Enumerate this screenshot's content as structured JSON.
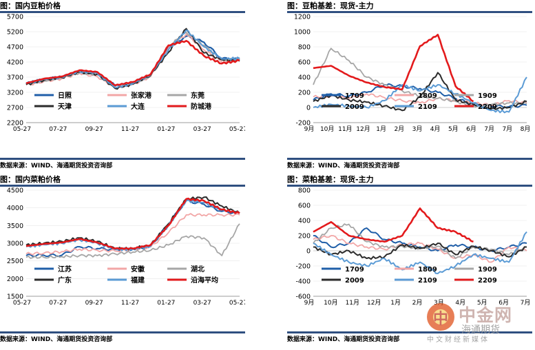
{
  "panels": [
    {
      "title": "图：国内豆粕价格",
      "source": "数据来源：WIND、海通期货投资咨询部",
      "chart_data": {
        "type": "line",
        "ylim": [
          2200,
          5700
        ],
        "yticks": [
          2200,
          2700,
          3200,
          3700,
          4200,
          4700,
          5200,
          5700
        ],
        "xticks": [
          "05-27",
          "07-27",
          "09-27",
          "11-27",
          "01-27",
          "03-27",
          "05-27"
        ],
        "x_count": 13,
        "series": [
          {
            "name": "日照",
            "color": "#1f5ea8",
            "width": 2.2,
            "values": [
              3480,
              3620,
              3700,
              3880,
              3820,
              3420,
              3510,
              3760,
              4700,
              5050,
              4850,
              4310,
              4280
            ]
          },
          {
            "name": "张家港",
            "color": "#f2a6a6",
            "width": 1.8,
            "values": [
              3440,
              3560,
              3650,
              3830,
              3720,
              3370,
              3460,
              3720,
              4650,
              5120,
              4600,
              4200,
              4260
            ]
          },
          {
            "name": "东莞",
            "color": "#a6a6a6",
            "width": 1.8,
            "values": [
              3460,
              3580,
              3680,
              3850,
              3780,
              3380,
              3480,
              3740,
              4720,
              5180,
              4750,
              4260,
              4300
            ]
          },
          {
            "name": "天津",
            "color": "#2b2b2b",
            "width": 2.0,
            "values": [
              3460,
              3600,
              3690,
              3870,
              3800,
              3330,
              3470,
              3770,
              4520,
              5300,
              4500,
              4280,
              4230
            ]
          },
          {
            "name": "大连",
            "color": "#5b9bd5",
            "width": 2.0,
            "values": [
              3500,
              3630,
              3710,
              3890,
              3830,
              3360,
              3490,
              3790,
              4600,
              5250,
              4700,
              4300,
              4320
            ]
          },
          {
            "name": "防城港",
            "color": "#e31a1c",
            "width": 2.6,
            "values": [
              3500,
              3650,
              3720,
              3930,
              3870,
              3430,
              3540,
              3800,
              4750,
              4900,
              4400,
              4150,
              4250
            ]
          }
        ]
      }
    },
    {
      "title": "图：豆粕基差：现货-主力",
      "source": "数据来源：WIND、海通期货投资咨询部",
      "chart_data": {
        "type": "line",
        "ylim": [
          -200,
          1200
        ],
        "yticks": [
          -200,
          0,
          200,
          400,
          600,
          800,
          1000,
          1200
        ],
        "xticks": [
          "9月",
          "10月",
          "11月",
          "12月",
          "1月",
          "2月",
          "3月",
          "4月",
          "5月",
          "6月",
          "7月",
          "7月",
          "8月"
        ],
        "x_count": 13,
        "series": [
          {
            "name": "1709",
            "color": "#1f5ea8",
            "width": 2.0,
            "values": [
              100,
              180,
              150,
              200,
              300,
              280,
              250,
              200,
              120,
              40,
              20,
              10,
              30
            ]
          },
          {
            "name": "1809",
            "color": "#f2a6a6",
            "width": 1.8,
            "values": [
              140,
              150,
              120,
              180,
              130,
              90,
              60,
              120,
              90,
              60,
              30,
              90,
              60
            ]
          },
          {
            "name": "1909",
            "color": "#a6a6a6",
            "width": 1.8,
            "values": [
              300,
              780,
              620,
              400,
              300,
              220,
              150,
              120,
              80,
              20,
              40,
              60,
              50
            ]
          },
          {
            "name": "2009",
            "color": "#2b2b2b",
            "width": 2.0,
            "values": [
              80,
              160,
              100,
              70,
              20,
              -40,
              140,
              460,
              100,
              40,
              -20,
              0,
              80
            ]
          },
          {
            "name": "2109",
            "color": "#5b9bd5",
            "width": 2.0,
            "values": [
              0,
              40,
              20,
              0,
              90,
              300,
              220,
              300,
              180,
              60,
              -40,
              -60,
              400
            ]
          },
          {
            "name": "2209",
            "color": "#e31a1c",
            "width": 2.6,
            "values": [
              520,
              550,
              420,
              330,
              270,
              240,
              810,
              960,
              280,
              80,
              null,
              null,
              null
            ]
          }
        ]
      }
    },
    {
      "title": "图：国内菜粕价格",
      "source": "数据来源：WIND、海通期货投资咨询部",
      "chart_data": {
        "type": "line",
        "ylim": [
          1500,
          4500
        ],
        "yticks": [
          1500,
          2000,
          2500,
          3000,
          3500,
          4000,
          4500
        ],
        "xticks": [
          "05-27",
          "07-27",
          "09-27",
          "11-27",
          "01-27",
          "03-27",
          "05-27"
        ],
        "x_count": 13,
        "series": [
          {
            "name": "江苏",
            "color": "#1f5ea8",
            "width": 2.0,
            "values": [
              2650,
              2660,
              2660,
              2900,
              2850,
              2820,
              2830,
              2900,
              3550,
              4200,
              4100,
              3900,
              3850
            ]
          },
          {
            "name": "安徽",
            "color": "#f2a6a6",
            "width": 1.8,
            "values": [
              2700,
              2720,
              2760,
              2830,
              2800,
              2780,
              2820,
              2900,
              3300,
              3800,
              3800,
              3800,
              3800
            ]
          },
          {
            "name": "湖北",
            "color": "#a6a6a6",
            "width": 1.8,
            "values": [
              2600,
              2600,
              2620,
              2650,
              2650,
              2700,
              2750,
              2800,
              2950,
              3200,
              3150,
              2650,
              3550
            ]
          },
          {
            "name": "广东",
            "color": "#2b2b2b",
            "width": 2.0,
            "values": [
              2950,
              3000,
              3050,
              3150,
              3050,
              2850,
              2850,
              2950,
              3550,
              4250,
              4300,
              4050,
              3850
            ]
          },
          {
            "name": "福建",
            "color": "#5b9bd5",
            "width": 2.0,
            "values": [
              2900,
              2960,
              3000,
              3100,
              3000,
              2830,
              2830,
              2920,
              3500,
              4200,
              4150,
              3950,
              3850
            ]
          },
          {
            "name": "沿海平均",
            "color": "#e31a1c",
            "width": 2.6,
            "values": [
              2920,
              2980,
              3020,
              3120,
              3020,
              2850,
              2850,
              2950,
              3500,
              4250,
              4200,
              3950,
              3850
            ]
          }
        ]
      }
    },
    {
      "title": "图：菜粕基差：现货-主力",
      "source": "数据来源：WIND、海通期货投资咨询部",
      "chart_data": {
        "type": "line",
        "ylim": [
          -600,
          800
        ],
        "yticks": [
          -600,
          -400,
          -200,
          0,
          200,
          400,
          600,
          800
        ],
        "xticks": [
          "9月",
          "10月",
          "11月",
          "12月",
          "1月",
          "2月",
          "3月",
          "4月",
          "5月",
          "6月",
          "7月"
        ],
        "x_count": 13,
        "series": [
          {
            "name": "1709",
            "color": "#1f5ea8",
            "width": 2.0,
            "values": [
              200,
              50,
              100,
              300,
              150,
              100,
              50,
              0,
              80,
              50,
              0,
              50,
              100
            ]
          },
          {
            "name": "1809",
            "color": "#f2a6a6",
            "width": 1.8,
            "values": [
              150,
              200,
              100,
              50,
              20,
              80,
              100,
              20,
              -100,
              -50,
              -150,
              50,
              0
            ]
          },
          {
            "name": "1909",
            "color": "#a6a6a6",
            "width": 1.8,
            "values": [
              100,
              300,
              350,
              120,
              50,
              60,
              30,
              60,
              -100,
              50,
              20,
              -50,
              50
            ]
          },
          {
            "name": "2009",
            "color": "#2b2b2b",
            "width": 2.0,
            "values": [
              50,
              -50,
              0,
              -100,
              -80,
              80,
              30,
              100,
              -50,
              60,
              0,
              -80,
              50
            ]
          },
          {
            "name": "2109",
            "color": "#5b9bd5",
            "width": 2.0,
            "values": [
              100,
              -50,
              -150,
              -200,
              -100,
              -250,
              -150,
              -300,
              -200,
              -50,
              -100,
              -150,
              250
            ]
          },
          {
            "name": "2209",
            "color": "#e31a1c",
            "width": 2.6,
            "values": [
              250,
              380,
              200,
              150,
              120,
              200,
              560,
              300,
              250,
              120,
              null,
              null,
              null
            ]
          }
        ]
      }
    }
  ],
  "watermark": {
    "logo_char": "中",
    "brand": "中金网",
    "mid": "海通期货",
    "sub": "中文财经新媒体"
  }
}
